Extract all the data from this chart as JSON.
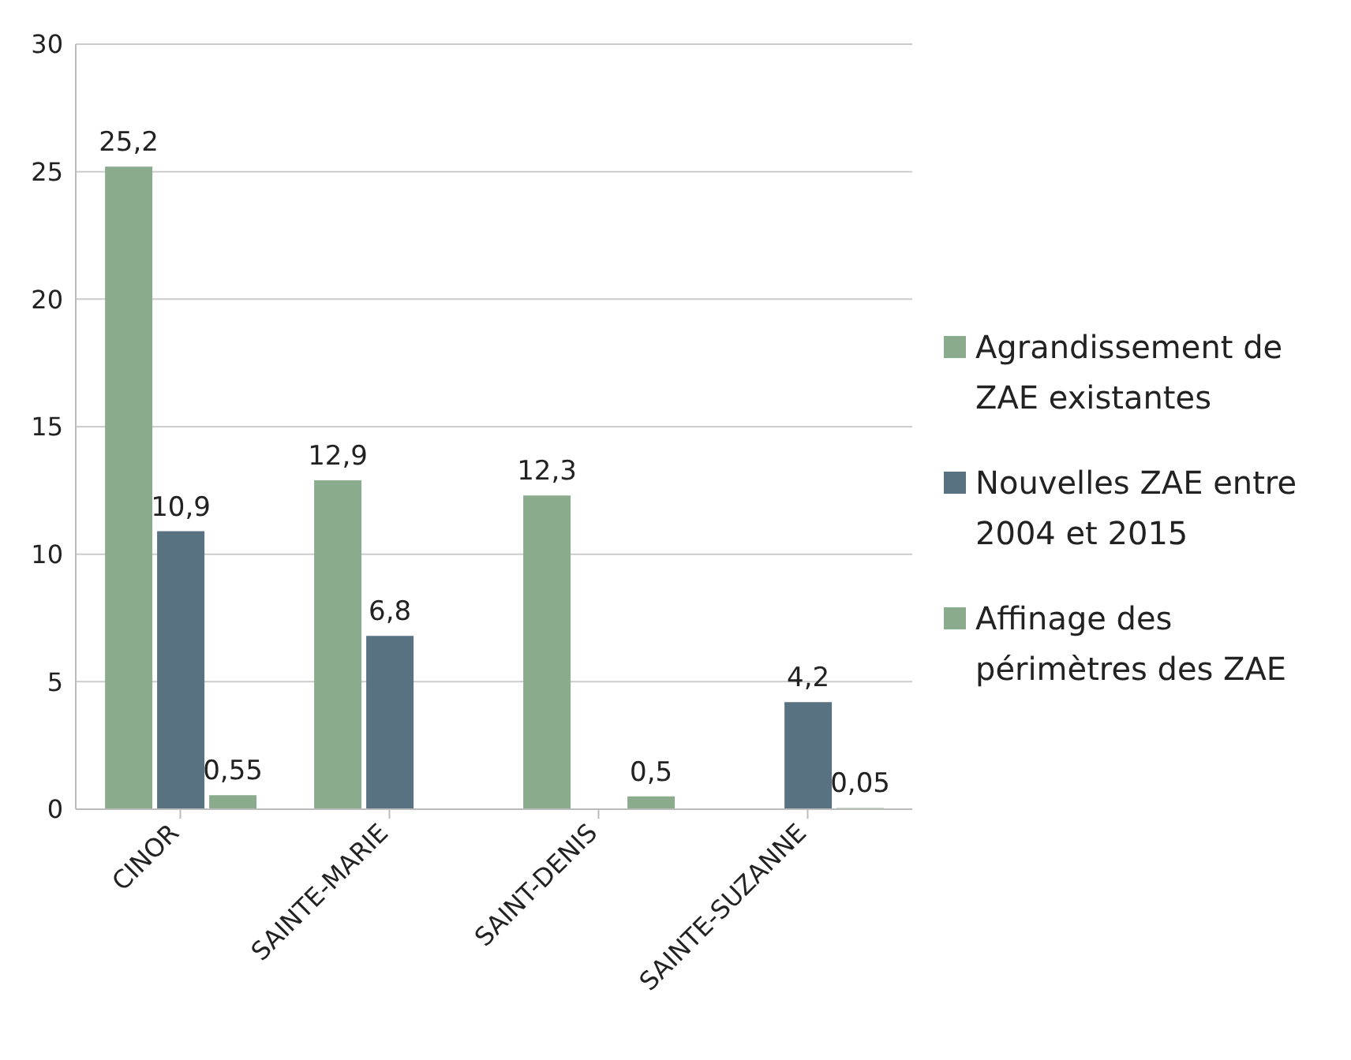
{
  "chart_data": {
    "type": "bar",
    "categories": [
      "CINOR",
      "SAINTE-MARIE",
      "SAINT-DENIS",
      "SAINTE-SUZANNE"
    ],
    "series": [
      {
        "name": "Agrandissement de ZAE existantes",
        "color": "#8aab8c",
        "values": [
          25.2,
          12.9,
          12.3,
          null
        ],
        "value_labels": [
          "25,2",
          "12,9",
          "12,3",
          null
        ]
      },
      {
        "name": "Nouvelles ZAE entre 2004 et 2015",
        "color": "#587282",
        "values": [
          10.9,
          6.8,
          null,
          4.2
        ],
        "value_labels": [
          "10,9",
          "6,8",
          null,
          "4,2"
        ]
      },
      {
        "name": "Affinage des périmètres des ZAE",
        "color": "#8aab8c",
        "values": [
          0.55,
          null,
          0.5,
          0.05
        ],
        "value_labels": [
          "0,55",
          null,
          "0,5",
          "0,05"
        ]
      }
    ],
    "ylim": [
      0,
      30
    ],
    "yticks": [
      0,
      5,
      10,
      15,
      20,
      25,
      30
    ],
    "grid": "y",
    "legend": "right"
  }
}
